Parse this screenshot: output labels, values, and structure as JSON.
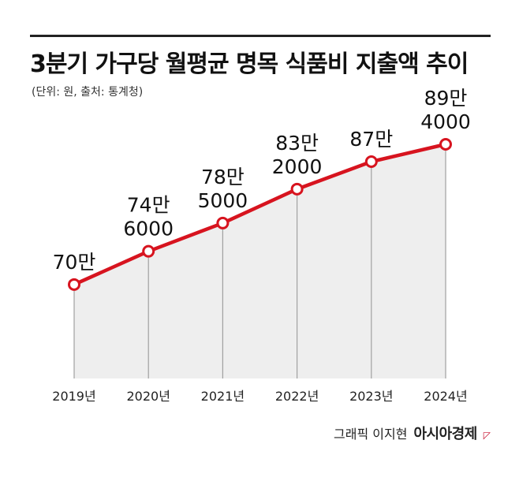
{
  "title": "3분기 가구당 월평균 명목 식품비 지출액 추이",
  "subtitle": "(단위: 원, 출처: 통계청)",
  "credit": {
    "graphic": "그래픽 이지현",
    "brand": "아시아경제"
  },
  "colors": {
    "line": "#d7141f",
    "area": "#eeeeee",
    "grid": "#a0a0a0"
  },
  "chart_data": {
    "type": "line",
    "categories": [
      "2019년",
      "2020년",
      "2021년",
      "2022년",
      "2023년",
      "2024년"
    ],
    "series": [
      {
        "values": [
          700000,
          746000,
          785000,
          832000,
          870000,
          894000
        ]
      }
    ],
    "data_labels": [
      [
        "70만"
      ],
      [
        "74만",
        "6000"
      ],
      [
        "78만",
        "5000"
      ],
      [
        "83만",
        "2000"
      ],
      [
        "87만"
      ],
      [
        "89만",
        "4000"
      ]
    ],
    "ylim": [
      570000,
      930000
    ],
    "grid": false,
    "legend": "none"
  }
}
